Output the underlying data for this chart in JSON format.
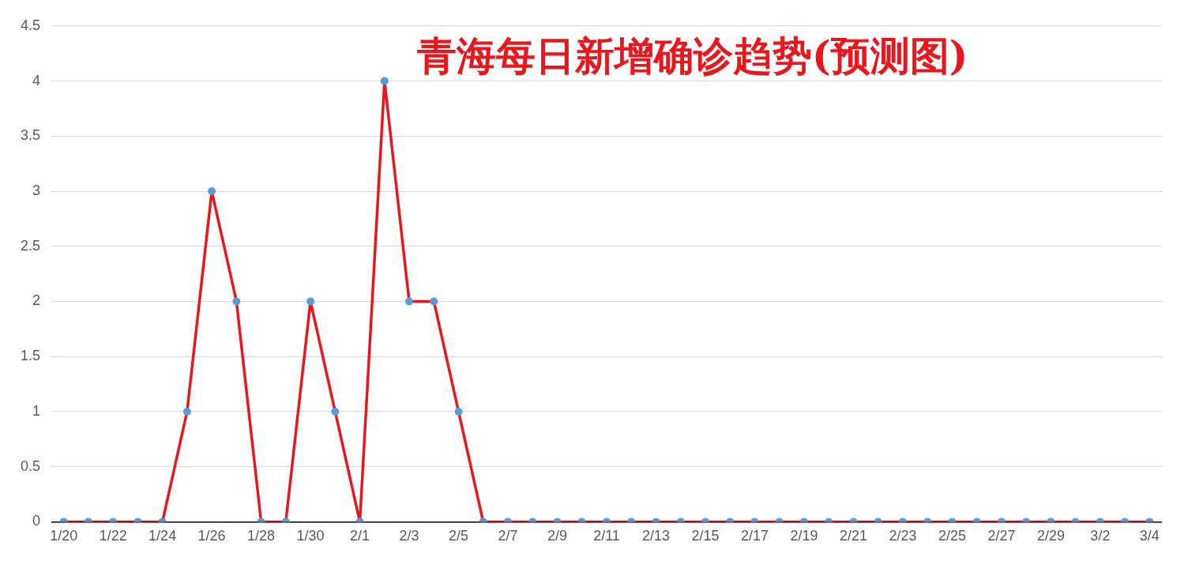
{
  "chart_data": {
    "type": "line",
    "title": "青海每日新增确诊趋势(预测图)",
    "categories": [
      "1/20",
      null,
      "1/22",
      null,
      "1/24",
      null,
      "1/26",
      null,
      "1/28",
      null,
      "1/30",
      null,
      "2/1",
      null,
      "2/3",
      null,
      "2/5",
      null,
      "2/7",
      null,
      "2/9",
      null,
      "2/11",
      null,
      "2/13",
      null,
      "2/15",
      null,
      "2/17",
      null,
      "2/19",
      null,
      "2/21",
      null,
      "2/23",
      null,
      "2/25",
      null,
      "2/27",
      null,
      "2/29",
      null,
      "3/2",
      null,
      "3/4"
    ],
    "series": [
      {
        "color": "#e8171e",
        "values": [
          0,
          0,
          0,
          0,
          0,
          1,
          3,
          2,
          0,
          0,
          2,
          1,
          0,
          4,
          2,
          2,
          1,
          0,
          0,
          0,
          0,
          0,
          0,
          0,
          0,
          0,
          0,
          0,
          0,
          0,
          0,
          0,
          0,
          0,
          0,
          0,
          0,
          0,
          0,
          0,
          0,
          0,
          0,
          0,
          0
        ]
      }
    ],
    "ylim": [
      0,
      4.5
    ],
    "yticks": [
      0,
      0.5,
      1,
      1.5,
      2,
      2.5,
      3,
      3.5,
      4,
      4.5
    ],
    "grid": "y",
    "legend": false,
    "marker": "circle",
    "line_style": "solid"
  }
}
